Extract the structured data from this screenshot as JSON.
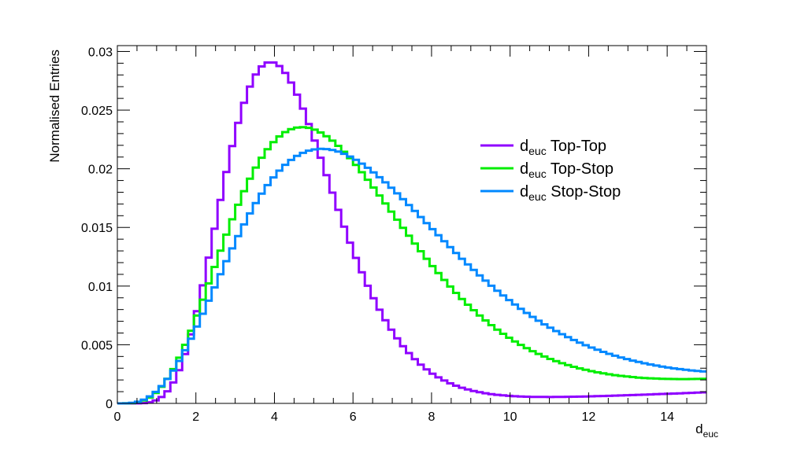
{
  "chart_data": {
    "type": "line",
    "style": "step-histogram",
    "xlabel": {
      "main": "d",
      "sub": "euc"
    },
    "ylabel": "Normalised Entries",
    "xlim": [
      0,
      15
    ],
    "ylim": [
      0,
      0.0305
    ],
    "x_ticks": [
      0,
      2,
      4,
      6,
      8,
      10,
      12,
      14
    ],
    "y_ticks": [
      0,
      0.005,
      0.01,
      0.015,
      0.02,
      0.025,
      0.03
    ],
    "x_tick_labels": [
      "0",
      "2",
      "4",
      "6",
      "8",
      "10",
      "12",
      "14"
    ],
    "y_tick_labels": [
      "0",
      "0.005",
      "0.01",
      "0.015",
      "0.02",
      "0.025",
      "0.03"
    ],
    "grid": false,
    "legend_position": "right",
    "bin_edges": {
      "start": 0,
      "end": 15,
      "count": 100
    },
    "series": [
      {
        "name": "Top-Top",
        "label_main": "d",
        "label_sub": "euc",
        "label_rest": " Top-Top",
        "color": "#8f00ff",
        "kind": "gamma",
        "peak_x": 3.9,
        "peak_y": 0.0291,
        "shape": 8.5,
        "tail_at_15": 0.00095
      },
      {
        "name": "Top-Stop",
        "label_main": "d",
        "label_sub": "euc",
        "label_rest": " Top-Stop",
        "color": "#00ee00",
        "kind": "gamma",
        "peak_x": 4.7,
        "peak_y": 0.02355,
        "shape": 5.2,
        "tail_at_15": 0.0021
      },
      {
        "name": "Stop-Stop",
        "label_main": "d",
        "label_sub": "euc",
        "label_rest": " Stop-Stop",
        "color": "#0088ff",
        "kind": "gamma",
        "peak_x": 5.2,
        "peak_y": 0.0217,
        "shape": 4.6,
        "tail_at_15": 0.0027
      }
    ]
  }
}
